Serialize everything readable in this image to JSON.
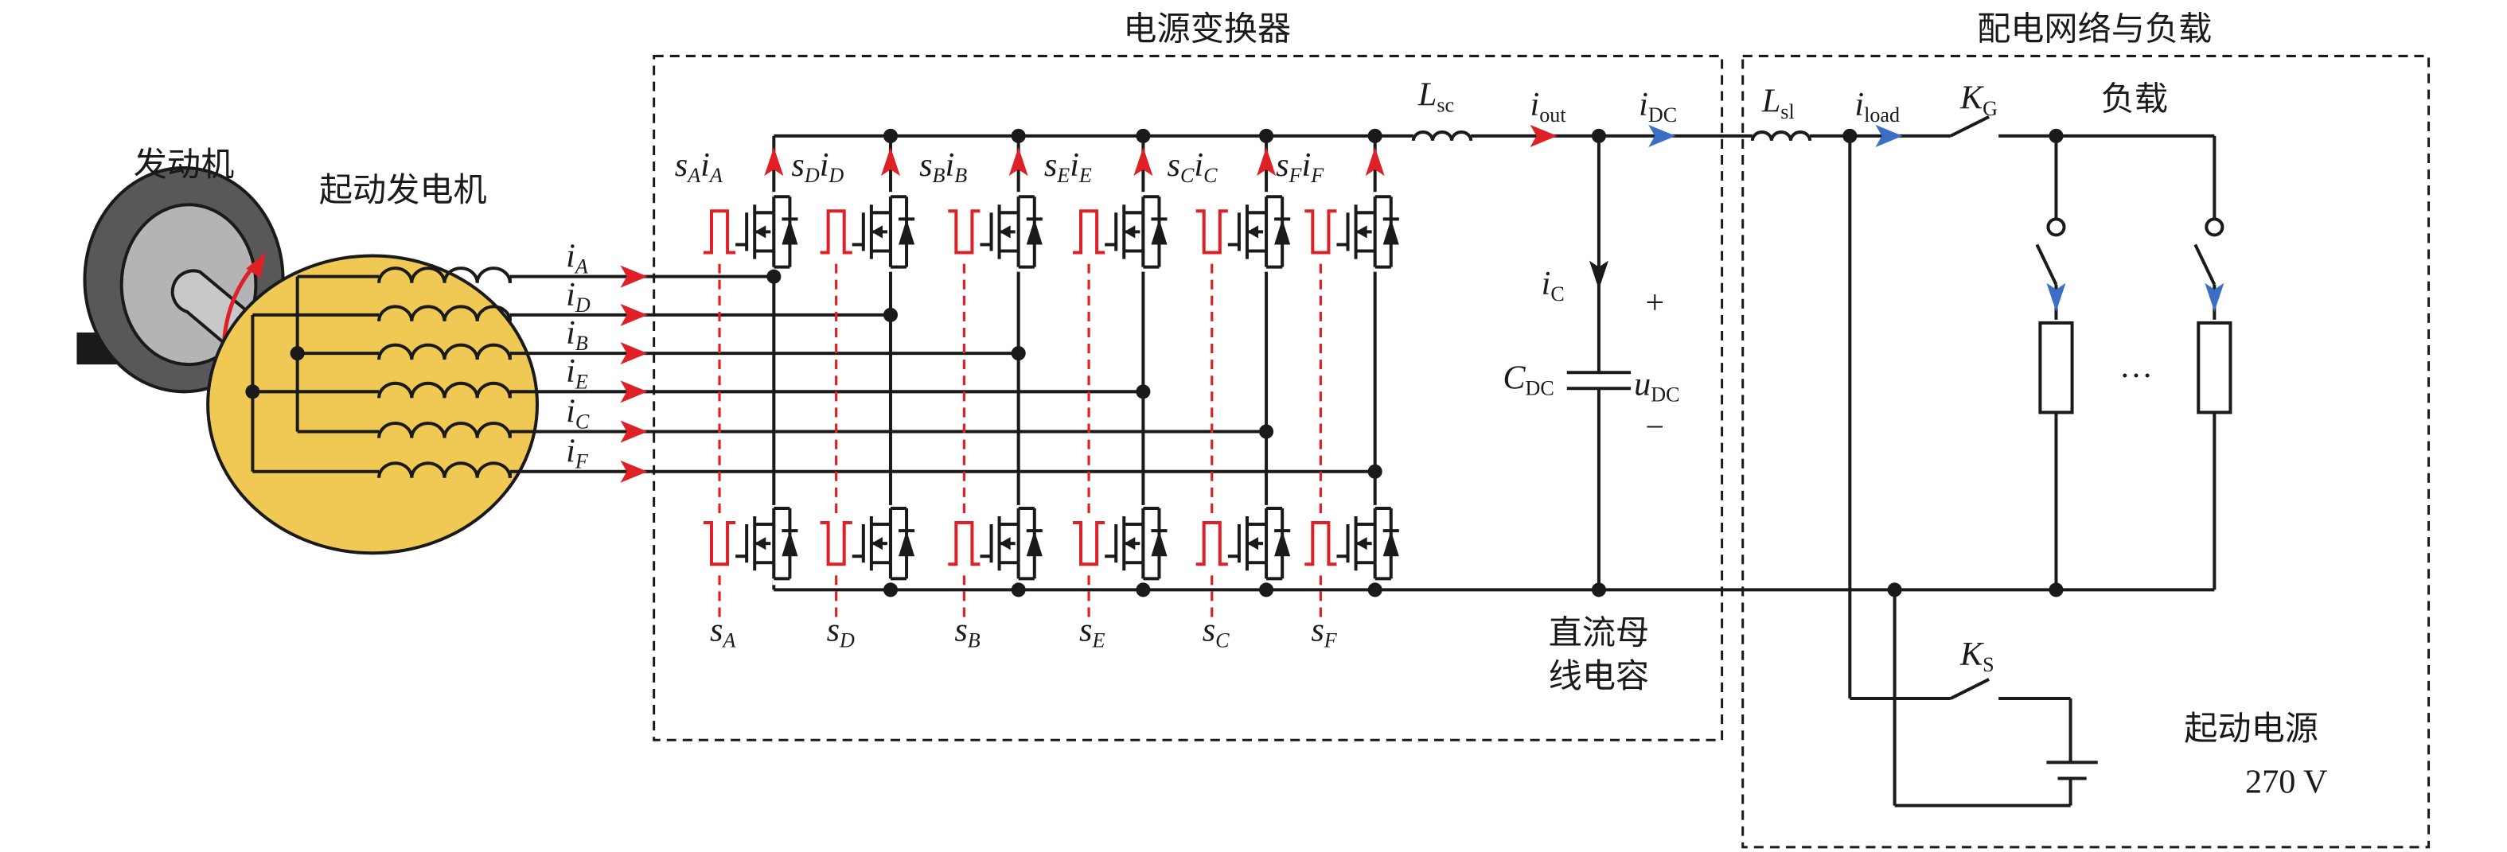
{
  "titles": {
    "converter": "电源变换器",
    "distribution": "配电网络与负载",
    "engine": "发动机",
    "starter_generator": "起动发电机",
    "dc_bus_cap_line1": "直流母",
    "dc_bus_cap_line2": "线电容",
    "load": "负载",
    "start_source": "起动电源",
    "start_voltage": "270 V",
    "ellipsis": "…"
  },
  "phases": [
    {
      "main": "i",
      "sub": "A"
    },
    {
      "main": "i",
      "sub": "D"
    },
    {
      "main": "i",
      "sub": "B"
    },
    {
      "main": "i",
      "sub": "E"
    },
    {
      "main": "i",
      "sub": "C"
    },
    {
      "main": "i",
      "sub": "F"
    }
  ],
  "legs": [
    {
      "s": "s",
      "ss": "A",
      "i": "i",
      "is": "A",
      "upper_pulse": "high",
      "lower_pulse": "low"
    },
    {
      "s": "s",
      "ss": "D",
      "i": "i",
      "is": "D",
      "upper_pulse": "high",
      "lower_pulse": "low"
    },
    {
      "s": "s",
      "ss": "B",
      "i": "i",
      "is": "B",
      "upper_pulse": "low",
      "lower_pulse": "high"
    },
    {
      "s": "s",
      "ss": "E",
      "i": "i",
      "is": "E",
      "upper_pulse": "high",
      "lower_pulse": "low"
    },
    {
      "s": "s",
      "ss": "C",
      "i": "i",
      "is": "C",
      "upper_pulse": "low",
      "lower_pulse": "high"
    },
    {
      "s": "s",
      "ss": "F",
      "i": "i",
      "is": "F",
      "upper_pulse": "low",
      "lower_pulse": "high"
    }
  ],
  "labels": {
    "Lsc": {
      "main": "L",
      "sub": "sc"
    },
    "iout": {
      "main": "i",
      "sub": "out"
    },
    "iDC": {
      "main": "i",
      "sub": "DC"
    },
    "Lsl": {
      "main": "L",
      "sub": "sl"
    },
    "iload": {
      "main": "i",
      "sub": "load"
    },
    "KG": {
      "main": "K",
      "sub": "G"
    },
    "KS": {
      "main": "K",
      "sub": "S"
    },
    "iC": {
      "main": "i",
      "sub": "C"
    },
    "CDC": {
      "main": "C",
      "sub": "DC"
    },
    "uDC": {
      "main": "u",
      "sub": "DC"
    },
    "plus": "+",
    "minus": "−"
  },
  "colors": {
    "phase_arrow": "#e02027",
    "dc_arrow": "#3a6fc4",
    "generator": "#f0c955",
    "engine_outer": "#58585a",
    "engine_inner": "#b4b4b4"
  }
}
